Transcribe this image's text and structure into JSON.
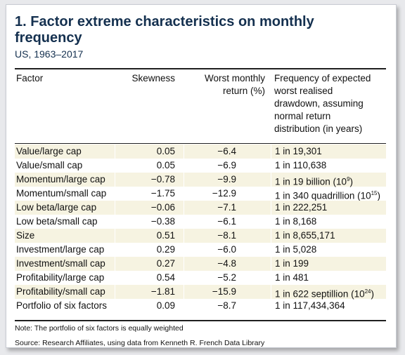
{
  "title": "1. Factor extreme characteristics on monthly frequency",
  "subtitle": "US, 1963–2017",
  "columns": {
    "factor": "Factor",
    "skewness": "Skewness",
    "worst_line1": "Worst monthly",
    "worst_line2": "return (%)",
    "freq_line1": "Frequency of expected",
    "freq_line2": "worst realised",
    "freq_line3": "drawdown, assuming",
    "freq_line4": "normal return",
    "freq_line5": "distribution (in years)"
  },
  "rows": [
    {
      "factor": "Value/large cap",
      "skewness": "0.05",
      "worst": "−6.4",
      "freq": "1 in 19,301",
      "sup": "",
      "close": ""
    },
    {
      "factor": "Value/small cap",
      "skewness": "0.05",
      "worst": "−6.9",
      "freq": "1 in 110,638",
      "sup": "",
      "close": ""
    },
    {
      "factor": "Momentum/large cap",
      "skewness": "−0.78",
      "worst": "−9.9",
      "freq": "1 in 19 billion (10",
      "sup": "9",
      "close": ")"
    },
    {
      "factor": "Momentum/small cap",
      "skewness": "−1.75",
      "worst": "−12.9",
      "freq": "1 in 340 quadrillion (10",
      "sup": "15",
      "close": ")"
    },
    {
      "factor": "Low beta/large cap",
      "skewness": "−0.06",
      "worst": "−7.1",
      "freq": "1 in 222,251",
      "sup": "",
      "close": ""
    },
    {
      "factor": "Low beta/small cap",
      "skewness": "−0.38",
      "worst": "−6.1",
      "freq": "1 in 8,168",
      "sup": "",
      "close": ""
    },
    {
      "factor": "Size",
      "skewness": "0.51",
      "worst": "−8.1",
      "freq": "1 in 8,655,171",
      "sup": "",
      "close": ""
    },
    {
      "factor": "Investment/large cap",
      "skewness": "0.29",
      "worst": "−6.0",
      "freq": "1 in 5,028",
      "sup": "",
      "close": ""
    },
    {
      "factor": "Investment/small cap",
      "skewness": "0.27",
      "worst": "−4.8",
      "freq": "1 in 199",
      "sup": "",
      "close": ""
    },
    {
      "factor": "Profitability/large cap",
      "skewness": "0.54",
      "worst": "−5.2",
      "freq": "1 in 481",
      "sup": "",
      "close": ""
    },
    {
      "factor": "Profitability/small cap",
      "skewness": "−1.81",
      "worst": "−15.9",
      "freq": "1 in 622 septillion (10",
      "sup": "24",
      "close": ")"
    },
    {
      "factor": "Portfolio of six factors",
      "skewness": "0.09",
      "worst": "−8.7",
      "freq": "1 in 117,434,364",
      "sup": "",
      "close": ""
    }
  ],
  "note": "Note: The portfolio of six factors is equally weighted",
  "source": "Source: Research Affiliates, using data from Kenneth R. French Data Library",
  "colors": {
    "title": "#14304f",
    "stripe": "#f6f3e1"
  }
}
